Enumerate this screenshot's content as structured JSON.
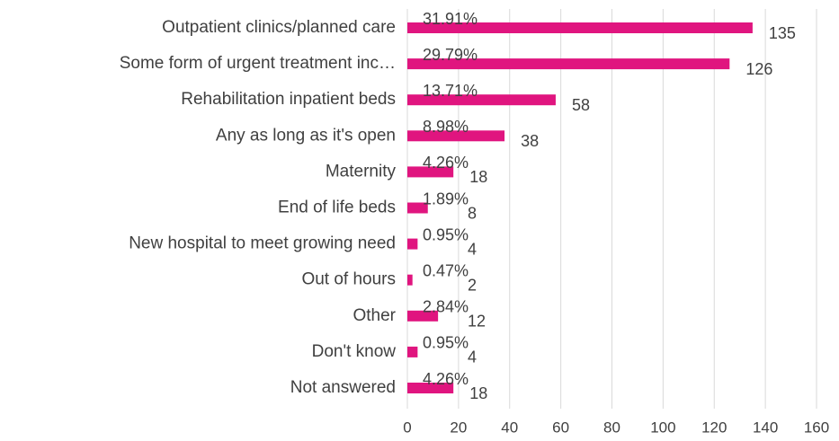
{
  "chart_data": {
    "type": "bar",
    "orientation": "horizontal",
    "categories": [
      "Outpatient clinics/planned care",
      "Some form of urgent treatment inc…",
      "Rehabilitation inpatient beds",
      "Any as long as it's open",
      "Maternity ",
      "End of life beds",
      "New hospital to meet growing need",
      "Out of hours",
      "Other",
      "Don't know",
      "Not answered"
    ],
    "values": [
      135,
      126,
      58,
      38,
      18,
      8,
      4,
      2,
      12,
      4,
      18
    ],
    "percent_labels": [
      "31.91%",
      "29.79%",
      "13.71%",
      "8.98%",
      "4.26%",
      "1.89%",
      "0.95%",
      "0.47%",
      "2.84%",
      "0.95%",
      "4.26%"
    ],
    "color": "#e0157f",
    "xlim": [
      0,
      160
    ],
    "xticks": [
      0,
      20,
      40,
      60,
      80,
      100,
      120,
      140,
      160
    ],
    "grid": true
  }
}
